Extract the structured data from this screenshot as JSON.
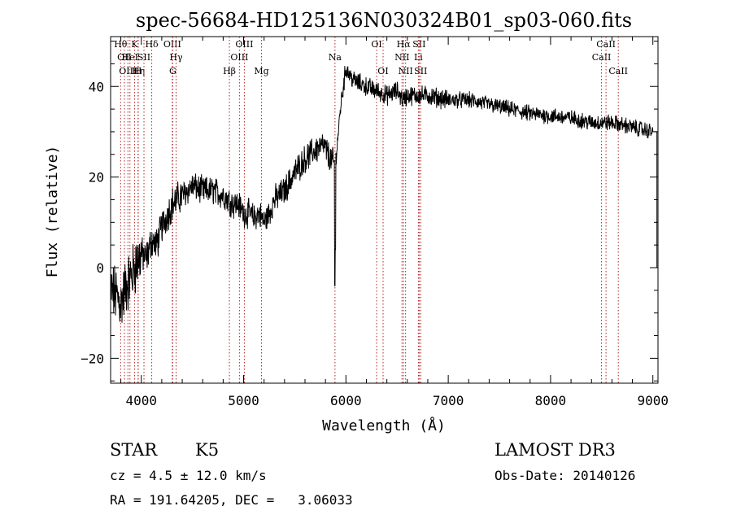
{
  "chart_data": {
    "type": "line",
    "title": "spec-56684-HD125136N030324B01_sp03-060.fits",
    "xlabel": "Wavelength (Å)",
    "ylabel": "Flux (relative)",
    "xlim": [
      3700,
      9050
    ],
    "ylim": [
      -25.5,
      51
    ],
    "x_ticks": [
      4000,
      5000,
      6000,
      7000,
      8000,
      9000
    ],
    "y_ticks": [
      -20,
      0,
      20,
      40
    ],
    "grid": false,
    "line_color": "#000000",
    "marker_color": "#b22222",
    "anchors": [
      [
        3700,
        -5
      ],
      [
        3750,
        -6
      ],
      [
        3800,
        -8
      ],
      [
        3850,
        -4
      ],
      [
        3900,
        -2
      ],
      [
        3950,
        1
      ],
      [
        4000,
        3
      ],
      [
        4050,
        2
      ],
      [
        4100,
        6
      ],
      [
        4150,
        5
      ],
      [
        4200,
        9
      ],
      [
        4300,
        14
      ],
      [
        4400,
        16
      ],
      [
        4500,
        18
      ],
      [
        4600,
        17
      ],
      [
        4700,
        17
      ],
      [
        4800,
        16
      ],
      [
        4900,
        14
      ],
      [
        4950,
        14
      ],
      [
        5000,
        12
      ],
      [
        5050,
        12
      ],
      [
        5100,
        11
      ],
      [
        5150,
        12
      ],
      [
        5200,
        10
      ],
      [
        5250,
        12
      ],
      [
        5300,
        15
      ],
      [
        5400,
        17
      ],
      [
        5500,
        21
      ],
      [
        5600,
        24
      ],
      [
        5700,
        26
      ],
      [
        5780,
        27
      ],
      [
        5850,
        24
      ],
      [
        5890,
        23
      ],
      [
        5910,
        26
      ],
      [
        5950,
        36
      ],
      [
        6000,
        44
      ],
      [
        6050,
        42
      ],
      [
        6100,
        41
      ],
      [
        6200,
        40
      ],
      [
        6300,
        39
      ],
      [
        6400,
        38
      ],
      [
        6500,
        39
      ],
      [
        6560,
        37
      ],
      [
        6600,
        38
      ],
      [
        6700,
        38
      ],
      [
        6800,
        38
      ],
      [
        7000,
        37
      ],
      [
        7200,
        37
      ],
      [
        7400,
        36
      ],
      [
        7600,
        35
      ],
      [
        7800,
        34
      ],
      [
        8000,
        33.5
      ],
      [
        8200,
        33
      ],
      [
        8400,
        32
      ],
      [
        8600,
        32
      ],
      [
        8800,
        31
      ],
      [
        9000,
        30
      ]
    ],
    "dips": [
      [
        5892,
        -4
      ],
      [
        5897,
        4
      ]
    ],
    "line_markers": [
      {
        "x": 3798,
        "label": "Hθ",
        "row": 0
      },
      {
        "x": 3835,
        "label": "OII",
        "row": 1
      },
      {
        "x": 3869,
        "label": "OIII",
        "row": 2
      },
      {
        "x": 3889,
        "label": "HeI",
        "row": 1
      },
      {
        "x": 3934,
        "label": "K",
        "row": 0
      },
      {
        "x": 3970,
        "label": "Hη",
        "row": 2
      },
      {
        "x": 3968,
        "label": "H",
        "row": 2
      },
      {
        "x": 4026,
        "label": "SII",
        "row": 1
      },
      {
        "x": 4102,
        "label": "Hδ",
        "row": 0
      },
      {
        "x": 4303,
        "label": "OIII",
        "row": 0
      },
      {
        "x": 4340,
        "label": "Hγ",
        "row": 1
      },
      {
        "x": 4307,
        "label": "G",
        "row": 2
      },
      {
        "x": 4861,
        "label": "Hβ",
        "row": 2
      },
      {
        "x": 4959,
        "label": "OIII",
        "row": 1
      },
      {
        "x": 5007,
        "label": "OIII",
        "row": 0
      },
      {
        "x": 5175,
        "label": "Mg",
        "row": 2
      },
      {
        "x": 5893,
        "label": "Na",
        "row": 1
      },
      {
        "x": 6300,
        "label": "OI",
        "row": 0
      },
      {
        "x": 6363,
        "label": "OI",
        "row": 2
      },
      {
        "x": 6548,
        "label": "NII",
        "row": 1
      },
      {
        "x": 6563,
        "label": "Hα",
        "row": 0
      },
      {
        "x": 6583,
        "label": "NII",
        "row": 2
      },
      {
        "x": 6708,
        "label": "Li",
        "row": 1
      },
      {
        "x": 6716,
        "label": "SII",
        "row": 0
      },
      {
        "x": 6731,
        "label": "SII",
        "row": 2
      },
      {
        "x": 8498,
        "label": "CaII",
        "row": 1
      },
      {
        "x": 8542,
        "label": "CaII",
        "row": 0
      },
      {
        "x": 8662,
        "label": "CaII",
        "row": 2
      }
    ]
  },
  "info": {
    "class_label": "STAR",
    "subclass": "K5",
    "redshift_line": "cz = 4.5 ± 12.0 km/s",
    "coords_line": "RA = 191.64205, DEC =   3.06033",
    "survey": "LAMOST DR3",
    "obs_date": "Obs-Date: 20140126"
  }
}
